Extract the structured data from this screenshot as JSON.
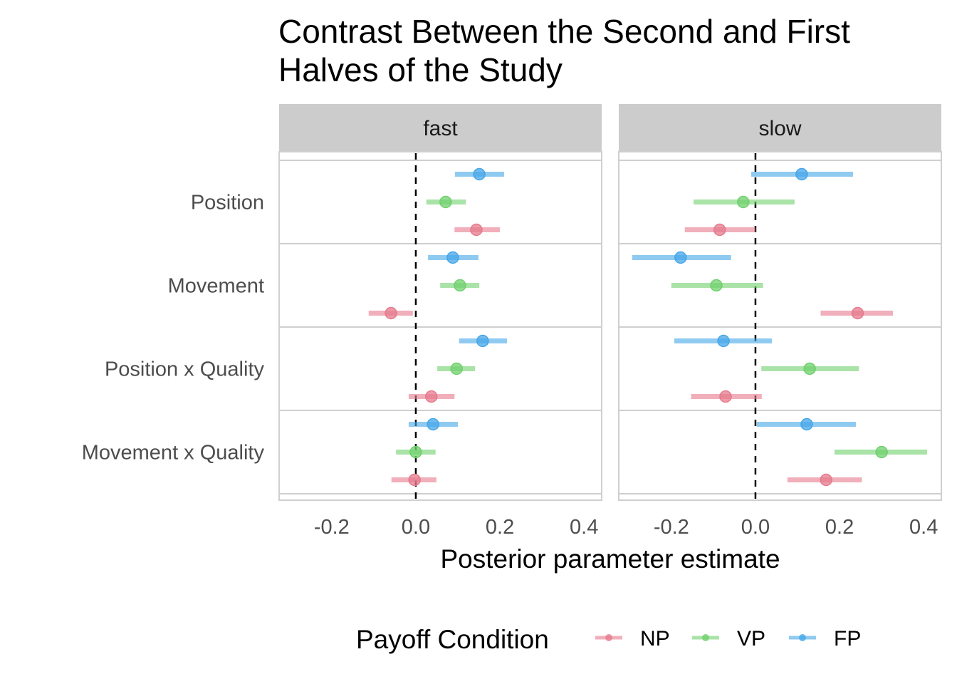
{
  "chart_data": {
    "type": "scatter",
    "subtype": "pointrange-forest",
    "title": "Contrast Between the Second and First Halves of the Study",
    "title_lines": [
      "Contrast Between the Second and First",
      "Halves of the Study"
    ],
    "xlabel": "Posterior parameter estimate",
    "ylabel": "",
    "xlim": [
      -0.325,
      0.442
    ],
    "x_ticks": [
      -0.2,
      0.0,
      0.2,
      0.4
    ],
    "x_tick_labels": [
      "-0.2",
      "0.0",
      "0.2",
      "0.4"
    ],
    "reference_line": {
      "x": 0,
      "style": "dashed"
    },
    "categories": [
      "Position",
      "Movement",
      "Position x Quality",
      "Movement x Quality"
    ],
    "facets": [
      "fast",
      "slow"
    ],
    "legend": {
      "title": "Payoff Condition",
      "position": "bottom",
      "entries": [
        {
          "name": "NP",
          "color": "#e67a8c"
        },
        {
          "name": "VP",
          "color": "#70d06c"
        },
        {
          "name": "FP",
          "color": "#45a6e8"
        }
      ]
    },
    "series_order_top_to_bottom": [
      "FP",
      "VP",
      "NP"
    ],
    "panels": [
      {
        "facet": "fast",
        "series": [
          {
            "name": "NP",
            "estimate": [
              0.144,
              -0.059,
              0.037,
              -0.003
            ],
            "lower": [
              0.092,
              -0.112,
              -0.017,
              -0.058
            ],
            "upper": [
              0.2,
              -0.007,
              0.092,
              0.049
            ]
          },
          {
            "name": "VP",
            "estimate": [
              0.071,
              0.105,
              0.097,
              0.0
            ],
            "lower": [
              0.025,
              0.058,
              0.051,
              -0.047
            ],
            "upper": [
              0.119,
              0.151,
              0.141,
              0.047
            ]
          },
          {
            "name": "FP",
            "estimate": [
              0.151,
              0.088,
              0.159,
              0.041
            ],
            "lower": [
              0.093,
              0.029,
              0.103,
              -0.017
            ],
            "upper": [
              0.21,
              0.149,
              0.217,
              0.1
            ]
          }
        ]
      },
      {
        "facet": "slow",
        "series": [
          {
            "name": "NP",
            "estimate": [
              -0.085,
              0.243,
              -0.071,
              0.168
            ],
            "lower": [
              -0.168,
              0.155,
              -0.153,
              0.076
            ],
            "upper": [
              0.0,
              0.327,
              0.015,
              0.253
            ]
          },
          {
            "name": "VP",
            "estimate": [
              -0.029,
              -0.093,
              0.129,
              0.3
            ],
            "lower": [
              -0.147,
              -0.2,
              0.014,
              0.188
            ],
            "upper": [
              0.093,
              0.018,
              0.246,
              0.408
            ]
          },
          {
            "name": "FP",
            "estimate": [
              0.11,
              -0.178,
              -0.076,
              0.122
            ],
            "lower": [
              -0.01,
              -0.293,
              -0.193,
              0.003
            ],
            "upper": [
              0.232,
              -0.058,
              0.039,
              0.239
            ]
          }
        ]
      }
    ]
  }
}
